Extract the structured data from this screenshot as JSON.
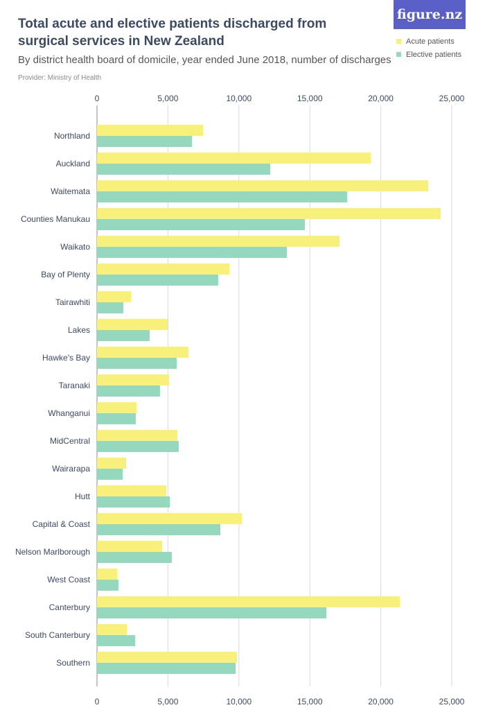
{
  "header": {
    "title": "Total acute and elective patients discharged from surgical services in New Zealand",
    "subtitle": "By district health board of domicile, year ended June 2018, number of discharges",
    "provider": "Provider: Ministry of Health",
    "logo": "figure.nz"
  },
  "colors": {
    "acute": "#f7f07a",
    "elective": "#96d8bd",
    "grid": "#d8d8d8",
    "logo_bg": "#5a5fc6"
  },
  "chart_data": {
    "type": "bar",
    "orientation": "horizontal",
    "title": "Total acute and elective patients discharged from surgical services in New Zealand",
    "xlim": [
      0,
      25000
    ],
    "ticks": [
      0,
      5000,
      10000,
      15000,
      20000,
      25000
    ],
    "tick_labels": [
      "0",
      "5,000",
      "10,000",
      "15,000",
      "20,000",
      "25,000"
    ],
    "grid": true,
    "legend": "top-right",
    "categories": [
      "Northland",
      "Auckland",
      "Waitemata",
      "Counties Manukau",
      "Waikato",
      "Bay of Plenty",
      "Tairawhiti",
      "Lakes",
      "Hawke's Bay",
      "Taranaki",
      "Whanganui",
      "MidCentral",
      "Wairarapa",
      "Hutt",
      "Capital & Coast",
      "Nelson Marlborough",
      "West Coast",
      "Canterbury",
      "South Canterbury",
      "Southern"
    ],
    "series": [
      {
        "name": "Acute patients",
        "values": [
          7470,
          19290,
          23340,
          24220,
          17090,
          9330,
          2390,
          4980,
          6450,
          5080,
          2780,
          5660,
          2050,
          4880,
          10200,
          4590,
          1420,
          21340,
          2100,
          9860
        ]
      },
      {
        "name": "Elective patients",
        "values": [
          6690,
          12210,
          17630,
          14650,
          13380,
          8540,
          1860,
          3710,
          5620,
          4440,
          2730,
          5760,
          1810,
          5130,
          8690,
          5270,
          1510,
          16160,
          2690,
          9770
        ]
      }
    ]
  }
}
